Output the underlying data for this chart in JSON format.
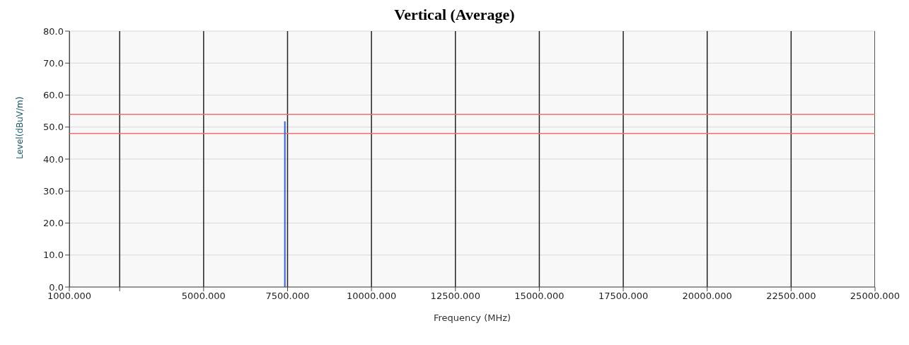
{
  "chart_data": {
    "type": "line",
    "title": "Vertical (Average)",
    "xlabel": "Frequency (MHz)",
    "ylabel": "Level(dBuV/m)",
    "xlim": [
      1000,
      25000
    ],
    "ylim": [
      0,
      80
    ],
    "xticks": [
      {
        "value": 1000,
        "label": "1000.000"
      },
      {
        "value": 2500,
        "label": null
      },
      {
        "value": 5000,
        "label": "5000.000"
      },
      {
        "value": 7500,
        "label": "7500.000"
      },
      {
        "value": 10000,
        "label": "10000.000"
      },
      {
        "value": 12500,
        "label": "12500.000"
      },
      {
        "value": 15000,
        "label": "15000.000"
      },
      {
        "value": 17500,
        "label": "17500.000"
      },
      {
        "value": 20000,
        "label": "20000.000"
      },
      {
        "value": 22500,
        "label": "22500.000"
      },
      {
        "value": 25000,
        "label": "25000.000"
      }
    ],
    "yticks": [
      {
        "value": 0,
        "label": "0.0"
      },
      {
        "value": 10,
        "label": "10.0"
      },
      {
        "value": 20,
        "label": "20.0"
      },
      {
        "value": 30,
        "label": "30.0"
      },
      {
        "value": 40,
        "label": "40.0"
      },
      {
        "value": 50,
        "label": "50.0"
      },
      {
        "value": 60,
        "label": "60.0"
      },
      {
        "value": 70,
        "label": "70.0"
      },
      {
        "value": 80,
        "label": "80.0"
      }
    ],
    "series": [
      {
        "color": "#2f62e0",
        "x": [
          7420,
          7420
        ],
        "values": [
          0,
          51.8
        ]
      }
    ],
    "ref_lines": [
      {
        "axis": "y",
        "value": 54,
        "color": "#f07070"
      },
      {
        "axis": "y",
        "value": 48,
        "color": "#f07070"
      }
    ],
    "grid": true,
    "marker": "none",
    "line_style": "solid"
  }
}
